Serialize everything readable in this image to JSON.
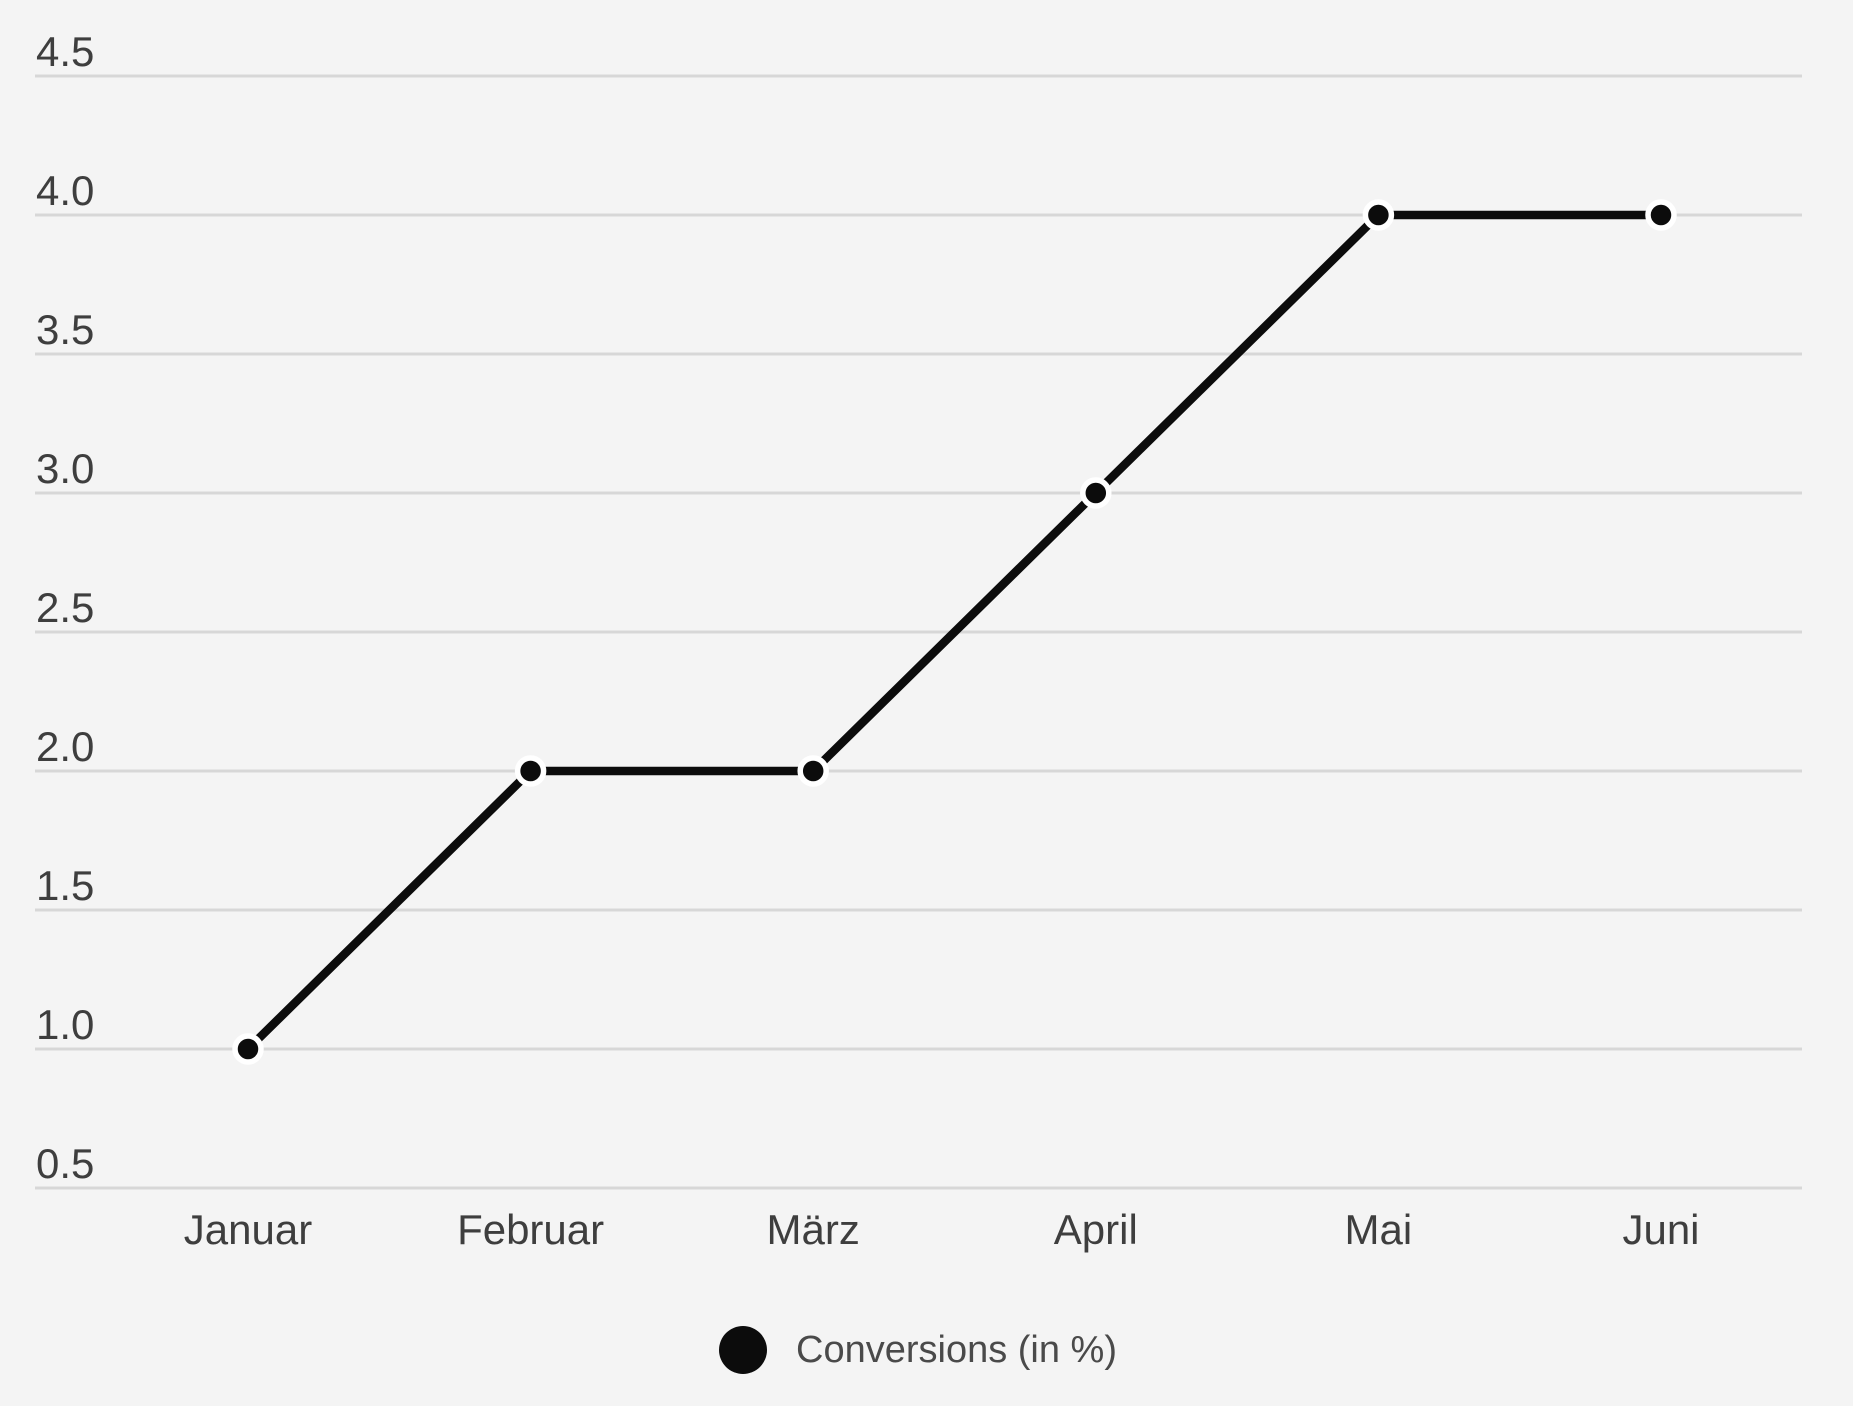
{
  "chart_data": {
    "type": "line",
    "categories": [
      "Januar",
      "Februar",
      "März",
      "April",
      "Mai",
      "Juni"
    ],
    "series": [
      {
        "name": "Conversions (in %)",
        "values": [
          1.0,
          2.0,
          2.0,
          3.0,
          4.0,
          4.0
        ]
      }
    ],
    "title": "",
    "xlabel": "",
    "ylabel": "",
    "ylim": [
      0.5,
      4.5
    ],
    "y_ticks": [
      "4.5",
      "4.0",
      "3.5",
      "3.0",
      "2.5",
      "2.0",
      "1.5",
      "1.0",
      "0.5"
    ],
    "grid": true,
    "legend_position": "bottom"
  },
  "legend": {
    "label": "Conversions (in %)"
  },
  "colors": {
    "background": "#f4f4f4",
    "gridline": "#d7d7d7",
    "tick_label": "#3e3e3e",
    "series_line": "#0c0c0c",
    "point_fill": "#0c0c0c",
    "point_ring": "#ffffff",
    "legend_marker": "#0c0c0c",
    "legend_text": "#4a4a4a"
  }
}
